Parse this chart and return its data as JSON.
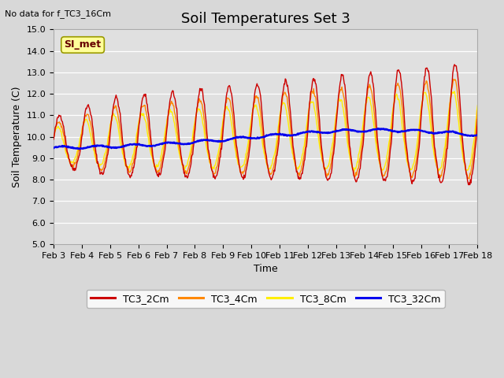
{
  "title": "Soil Temperatures Set 3",
  "no_data_text": "No data for f_TC3_16Cm",
  "si_met_label": "SI_met",
  "xlabel": "Time",
  "ylabel": "Soil Temperature (C)",
  "ylim": [
    5.0,
    15.0
  ],
  "yticks": [
    5.0,
    6.0,
    7.0,
    8.0,
    9.0,
    10.0,
    11.0,
    12.0,
    13.0,
    14.0,
    15.0
  ],
  "xtick_labels": [
    "Feb 3",
    "Feb 4",
    "Feb 5",
    "Feb 6",
    "Feb 7",
    "Feb 8",
    "Feb 9",
    "Feb 10",
    "Feb 11",
    "Feb 12",
    "Feb 13",
    "Feb 14",
    "Feb 15",
    "Feb 16",
    "Feb 17",
    "Feb 18"
  ],
  "num_days": 15,
  "points_per_day": 48,
  "fig_bg_color": "#d8d8d8",
  "axes_bg_color": "#e0e0e0",
  "line_colors": {
    "TC3_2Cm": "#cc0000",
    "TC3_4Cm": "#ff8800",
    "TC3_8Cm": "#ffee00",
    "TC3_32Cm": "#0000ee"
  },
  "si_met_box_color": "#ffff99",
  "si_met_text_color": "#660000",
  "si_met_edge_color": "#999900",
  "title_fontsize": 13,
  "label_fontsize": 9,
  "tick_fontsize": 8
}
